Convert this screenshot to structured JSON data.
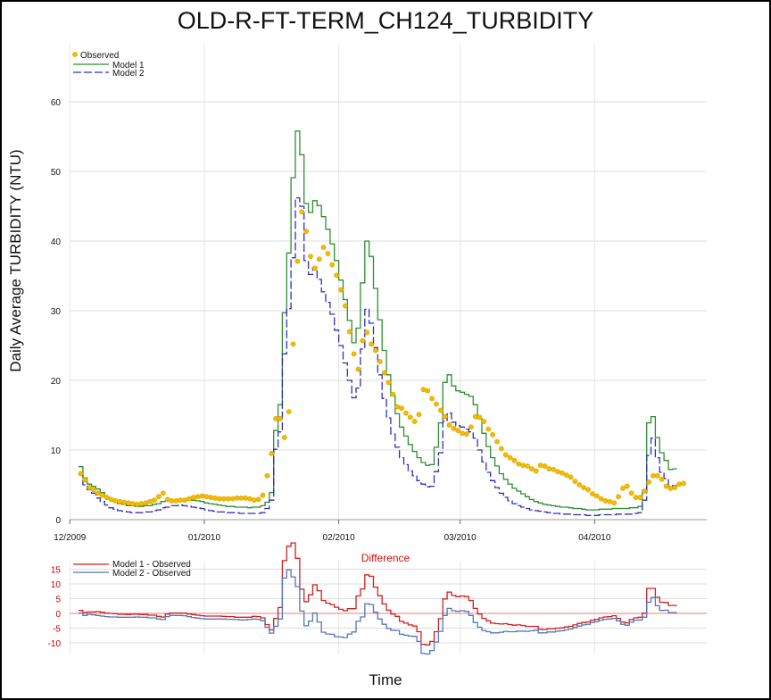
{
  "chart_data": [
    {
      "type": "line",
      "title": "OLD-R-FT-TERM_CH124_TURBIDITY",
      "ylabel": "Daily Average TURBIDITY (NTU)",
      "xlabel": "Time",
      "x_start": "2009-12-03",
      "ylim": [
        0,
        65
      ],
      "yticks": [
        0,
        10,
        20,
        30,
        40,
        50,
        60
      ],
      "xticks": [
        {
          "label": "12/2009",
          "date": "2009-12-01"
        },
        {
          "label": "01/2010",
          "date": "2010-01-01"
        },
        {
          "label": "02/2010",
          "date": "2010-02-01"
        },
        {
          "label": "03/2010",
          "date": "2010-03-01"
        },
        {
          "label": "04/2010",
          "date": "2010-04-01"
        }
      ],
      "grid": true,
      "legend_position": "top-left",
      "series": [
        {
          "name": "Observed",
          "style": "points",
          "color": "#f2bc00",
          "values": [
            6.6,
            5.7,
            4.6,
            4.3,
            3.8,
            3.5,
            3.2,
            2.9,
            2.7,
            2.6,
            2.5,
            2.4,
            2.3,
            2.2,
            2.3,
            2.4,
            2.6,
            2.8,
            3.3,
            3.8,
            2.9,
            2.7,
            2.7,
            2.8,
            2.8,
            3.0,
            3.2,
            3.3,
            3.4,
            3.3,
            3.2,
            3.1,
            3.0,
            3.0,
            3.0,
            3.0,
            3.1,
            3.1,
            3.1,
            3.0,
            2.8,
            2.9,
            3.5,
            6.3,
            9.5,
            14.5,
            14.5,
            11.8,
            15.5,
            25.2,
            37.1,
            44.2,
            41.4,
            37.8,
            36.1,
            37.4,
            39.1,
            38.2,
            36.6,
            35.1,
            33.0,
            30.7,
            27.0,
            23.8,
            21.6,
            25.7,
            26.9,
            25.2,
            24.3,
            22.7,
            21.1,
            19.7,
            18.0,
            16.2,
            16.0,
            15.3,
            14.7,
            14.1,
            15.1,
            18.7,
            18.5,
            17.4,
            16.6,
            15.7,
            14.8,
            13.6,
            13.1,
            12.8,
            12.4,
            12.3,
            13.3,
            14.8,
            14.7,
            14.1,
            13.0,
            12.2,
            11.2,
            10.2,
            9.3,
            8.9,
            8.5,
            8.0,
            7.8,
            7.7,
            7.3,
            7.0,
            7.8,
            7.7,
            7.3,
            7.2,
            6.9,
            6.7,
            6.4,
            6.1,
            5.5,
            5.0,
            4.6,
            4.3,
            3.7,
            3.4,
            3.0,
            2.7,
            2.6,
            2.4,
            3.3,
            4.5,
            4.8,
            3.8,
            3.2,
            3.2,
            4.1,
            5.4,
            6.3,
            6.3,
            5.8,
            4.8,
            4.5,
            4.6,
            5.1,
            5.2
          ]
        },
        {
          "name": "Model 1",
          "style": "step-solid",
          "color": "#2f8f2f",
          "values": [
            7.6,
            6.0,
            5.1,
            4.8,
            4.4,
            3.9,
            3.3,
            2.9,
            2.6,
            2.3,
            2.2,
            2.0,
            2.0,
            1.9,
            1.9,
            2.0,
            2.0,
            2.2,
            2.3,
            2.6,
            2.7,
            2.8,
            2.8,
            2.9,
            2.9,
            2.8,
            2.8,
            2.7,
            2.6,
            2.4,
            2.3,
            2.2,
            2.1,
            2.0,
            1.9,
            1.9,
            1.8,
            1.8,
            1.8,
            1.7,
            1.8,
            1.8,
            2.0,
            2.5,
            3.9,
            12.8,
            16.5,
            29.7,
            38.3,
            49.1,
            55.8,
            52.4,
            45.4,
            44.1,
            45.8,
            45.1,
            43.5,
            41.7,
            39.6,
            37.2,
            34.4,
            31.6,
            28.6,
            25.4,
            27.5,
            34.0,
            40.0,
            37.8,
            33.2,
            28.7,
            24.3,
            20.8,
            17.8,
            15.2,
            13.3,
            12.0,
            10.8,
            9.8,
            8.9,
            8.2,
            7.8,
            7.9,
            10.4,
            13.9,
            19.7,
            20.8,
            19.2,
            18.5,
            18.3,
            18.0,
            17.7,
            16.5,
            14.5,
            12.4,
            10.5,
            8.9,
            7.7,
            6.6,
            5.8,
            5.1,
            4.5,
            4.1,
            3.7,
            3.3,
            2.9,
            2.6,
            2.4,
            2.2,
            2.1,
            2.0,
            1.9,
            1.8,
            1.8,
            1.7,
            1.6,
            1.6,
            1.5,
            1.4,
            1.4,
            1.4,
            1.5,
            1.5,
            1.5,
            1.6,
            1.6,
            1.6,
            1.6,
            1.7,
            1.7,
            1.9,
            4.2,
            13.9,
            14.8,
            11.8,
            9.6,
            8.5,
            7.2,
            7.3
          ]
        },
        {
          "name": "Model 2",
          "style": "step-dashed",
          "color": "#3030b8",
          "values": [
            6.7,
            5.0,
            4.3,
            3.8,
            3.1,
            2.6,
            2.1,
            1.7,
            1.5,
            1.3,
            1.2,
            1.1,
            1.0,
            1.0,
            1.0,
            1.1,
            1.1,
            1.3,
            1.4,
            1.7,
            1.8,
            2.0,
            2.0,
            2.1,
            2.0,
            1.9,
            1.8,
            1.7,
            1.6,
            1.4,
            1.3,
            1.2,
            1.1,
            1.1,
            1.0,
            1.0,
            1.0,
            0.9,
            0.9,
            0.9,
            0.9,
            0.9,
            1.0,
            1.6,
            2.8,
            10.1,
            12.6,
            23.8,
            30.3,
            37.6,
            46.2,
            45.0,
            37.2,
            35.2,
            36.2,
            34.5,
            32.7,
            31.2,
            29.5,
            27.2,
            25.0,
            22.5,
            20.0,
            17.5,
            18.9,
            24.5,
            30.2,
            28.2,
            24.7,
            20.8,
            17.4,
            14.6,
            12.3,
            10.4,
            8.9,
            7.9,
            7.0,
            6.3,
            5.6,
            5.1,
            4.7,
            4.8,
            6.9,
            9.6,
            14.1,
            15.3,
            14.0,
            13.5,
            13.3,
            13.0,
            12.6,
            11.7,
            10.0,
            8.3,
            6.8,
            5.6,
            4.6,
            3.8,
            3.2,
            2.7,
            2.3,
            2.0,
            1.8,
            1.6,
            1.4,
            1.3,
            1.2,
            1.1,
            1.0,
            0.9,
            0.9,
            0.8,
            0.8,
            0.8,
            0.7,
            0.7,
            0.7,
            0.6,
            0.6,
            0.6,
            0.7,
            0.7,
            0.7,
            0.7,
            0.8,
            0.8,
            0.8,
            0.8,
            0.9,
            1.0,
            2.8,
            9.2,
            11.7,
            8.9,
            6.8,
            5.9,
            4.8,
            4.9
          ]
        }
      ]
    },
    {
      "type": "line",
      "title": "Difference",
      "ylim": [
        -13,
        17
      ],
      "yticks": [
        -10,
        -5,
        0,
        5,
        10,
        15
      ],
      "reference_line": 0,
      "legend_position": "top-left",
      "series": [
        {
          "name": "Model 1 - Observed",
          "color": "#d02020",
          "derived_from": [
            "Model 1",
            "Observed"
          ]
        },
        {
          "name": "Model 2 - Observed",
          "color": "#5577bb",
          "derived_from": [
            "Model 2",
            "Observed"
          ]
        }
      ]
    }
  ]
}
